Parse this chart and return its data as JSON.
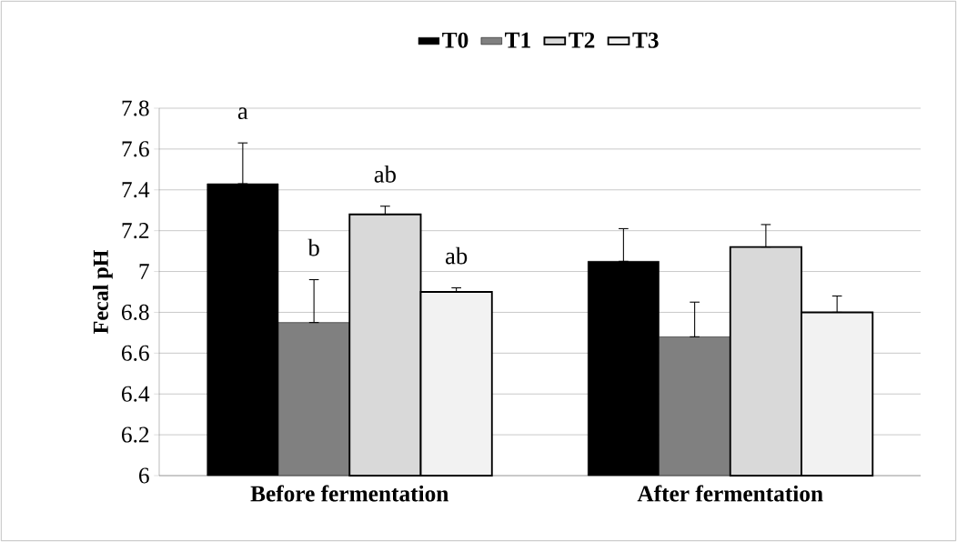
{
  "chart_data": {
    "type": "bar",
    "ylabel": "Fecal pH",
    "categories": [
      "Before fermentation",
      "After fermentation"
    ],
    "series": [
      {
        "name": "T0",
        "color": "#000000",
        "values": [
          7.43,
          7.05
        ],
        "errors": [
          [
            7.43,
            7.63
          ],
          [
            7.05,
            7.21
          ]
        ]
      },
      {
        "name": "T1",
        "color": "#808080",
        "values": [
          6.75,
          6.68
        ],
        "errors": [
          [
            6.75,
            6.96
          ],
          [
            6.68,
            6.85
          ]
        ]
      },
      {
        "name": "T2",
        "color": "#d9d9d9",
        "values": [
          7.28,
          7.12
        ],
        "errors": [
          [
            7.28,
            7.32
          ],
          [
            7.12,
            7.23
          ]
        ]
      },
      {
        "name": "T3",
        "color": "#f2f2f2",
        "values": [
          6.9,
          6.8
        ],
        "errors": [
          [
            6.9,
            6.92
          ],
          [
            6.8,
            6.88
          ]
        ]
      }
    ],
    "ylim": [
      6,
      7.8
    ],
    "yticks": [
      6,
      6.2,
      6.4,
      6.6,
      6.8,
      7,
      7.2,
      7.4,
      7.6,
      7.8
    ],
    "grid": "y",
    "legend": "top",
    "annotations": [
      "a",
      "b",
      "ab",
      "ab"
    ]
  }
}
